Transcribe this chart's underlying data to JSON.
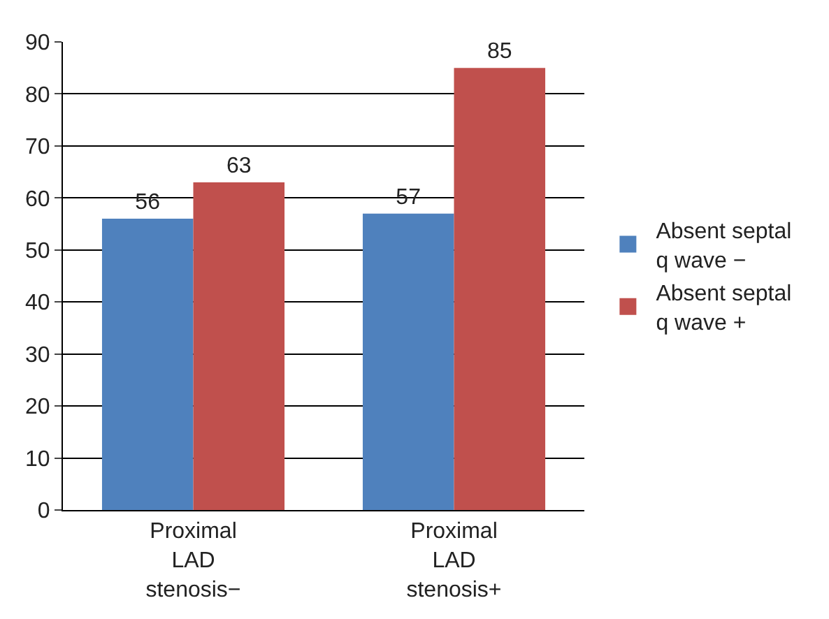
{
  "chart_data": {
    "type": "bar",
    "categories": [
      "Proximal LAD stenosis−",
      "Proximal LAD stenosis+"
    ],
    "series": [
      {
        "name": "Absent septal q wave −",
        "color": "#4f81bd",
        "values": [
          56,
          57
        ]
      },
      {
        "name": "Absent septal q wave +",
        "color": "#c0504d",
        "values": [
          63,
          85
        ]
      }
    ],
    "ylim": [
      0,
      90
    ],
    "yticks": [
      0,
      10,
      20,
      30,
      40,
      50,
      60,
      70,
      80,
      90
    ],
    "grid": "y",
    "legend": "right",
    "data_labels": true
  }
}
